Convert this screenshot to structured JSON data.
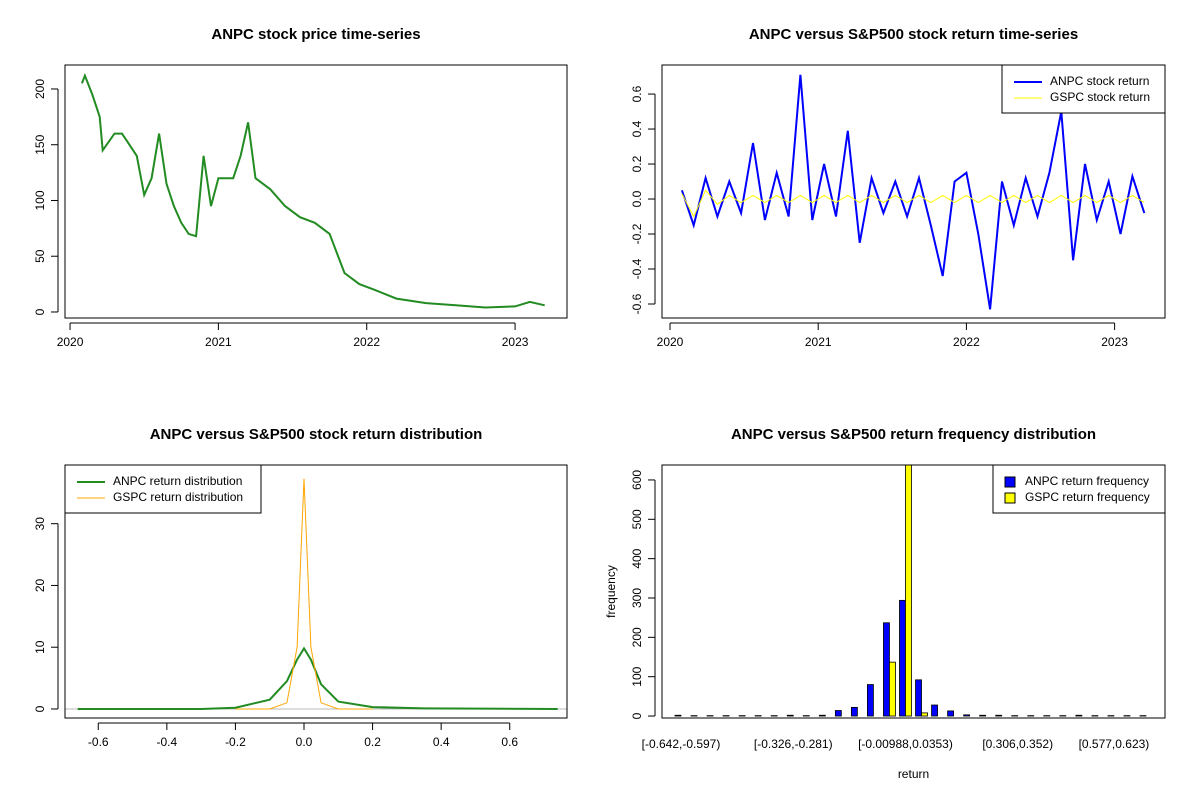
{
  "chart_data": [
    {
      "type": "line",
      "title": "ANPC stock price time-series",
      "color": "#228b22",
      "x": [
        2020.08,
        2020.1,
        2020.15,
        2020.2,
        2020.22,
        2020.3,
        2020.35,
        2020.4,
        2020.45,
        2020.5,
        2020.55,
        2020.6,
        2020.65,
        2020.7,
        2020.75,
        2020.8,
        2020.85,
        2020.9,
        2020.95,
        2021.0,
        2021.1,
        2021.15,
        2021.2,
        2021.25,
        2021.35,
        2021.45,
        2021.55,
        2021.65,
        2021.75,
        2021.85,
        2021.95,
        2022.05,
        2022.2,
        2022.4,
        2022.6,
        2022.8,
        2023.0,
        2023.1,
        2023.2
      ],
      "values": [
        205,
        212,
        195,
        175,
        145,
        160,
        160,
        150,
        140,
        105,
        120,
        160,
        115,
        95,
        80,
        70,
        68,
        140,
        95,
        120,
        120,
        140,
        170,
        120,
        110,
        95,
        85,
        80,
        70,
        35,
        25,
        20,
        12,
        8,
        6,
        4,
        5,
        9,
        6
      ],
      "xlim": [
        2019.966,
        2023.35
      ],
      "xticks": [
        2020,
        2021,
        2022,
        2023
      ],
      "ylim": [
        -5.4,
        221.5
      ],
      "yticks": [
        0,
        50,
        100,
        150,
        200
      ]
    },
    {
      "type": "line",
      "title": "ANPC versus S&P500 stock return time-series",
      "legend": "topright",
      "x": [
        2020.08,
        2020.16,
        2020.24,
        2020.32,
        2020.4,
        2020.48,
        2020.56,
        2020.64,
        2020.72,
        2020.8,
        2020.88,
        2020.96,
        2021.04,
        2021.12,
        2021.2,
        2021.28,
        2021.36,
        2021.44,
        2021.52,
        2021.6,
        2021.68,
        2021.76,
        2021.84,
        2021.92,
        2022.0,
        2022.08,
        2022.16,
        2022.24,
        2022.32,
        2022.4,
        2022.48,
        2022.56,
        2022.64,
        2022.72,
        2022.8,
        2022.88,
        2022.96,
        2023.04,
        2023.12,
        2023.2
      ],
      "series": [
        {
          "name": "ANPC stock return",
          "color": "#0000ff",
          "values": [
            0.05,
            -0.15,
            0.12,
            -0.1,
            0.1,
            -0.08,
            0.32,
            -0.12,
            0.15,
            -0.1,
            0.71,
            -0.12,
            0.2,
            -0.1,
            0.39,
            -0.25,
            0.12,
            -0.08,
            0.1,
            -0.1,
            0.12,
            -0.15,
            -0.44,
            0.1,
            0.15,
            -0.2,
            -0.63,
            0.1,
            -0.15,
            0.12,
            -0.1,
            0.15,
            0.5,
            -0.35,
            0.2,
            -0.12,
            0.1,
            -0.2,
            0.13,
            -0.08
          ]
        },
        {
          "name": "GSPC stock return",
          "color": "#ffff00",
          "values": [
            0.03,
            -0.1,
            0.05,
            -0.03,
            0.02,
            -0.02,
            0.02,
            -0.02,
            0.02,
            -0.02,
            0.02,
            -0.02,
            0.02,
            -0.02,
            0.02,
            -0.02,
            0.02,
            -0.02,
            0.02,
            -0.02,
            0.02,
            -0.02,
            0.02,
            -0.02,
            0.02,
            -0.02,
            0.02,
            -0.02,
            0.02,
            -0.02,
            0.02,
            -0.02,
            0.02,
            -0.02,
            0.02,
            -0.02,
            0.02,
            -0.02,
            0.02,
            -0.02
          ]
        }
      ],
      "xlim": [
        2019.946,
        2023.34
      ],
      "xticks": [
        2020,
        2021,
        2022,
        2023
      ],
      "ylim": [
        -0.68,
        0.766
      ],
      "yticks": [
        -0.6,
        -0.4,
        -0.2,
        {
          "value": 0,
          "label": "0.0"
        },
        0.2,
        0.4,
        0.6
      ]
    },
    {
      "type": "line",
      "title": "ANPC versus S&P500 stock return distribution",
      "legend": "topleft",
      "x": [
        -0.66,
        -0.3,
        -0.2,
        -0.1,
        -0.05,
        -0.02,
        0,
        0.02,
        0.05,
        0.1,
        0.2,
        0.35,
        0.74
      ],
      "series": [
        {
          "name": "ANPC return distribution",
          "color": "#228b22",
          "values": [
            0,
            0,
            0.2,
            1.5,
            4.5,
            8,
            9.8,
            8,
            4,
            1.2,
            0.3,
            0.1,
            0
          ]
        },
        {
          "name": "GSPC return distribution",
          "color": "#ffa500",
          "values": [
            null,
            null,
            0,
            0,
            1,
            10,
            37.3,
            10,
            1,
            0,
            0,
            null,
            null
          ]
        }
      ],
      "xlim": [
        -0.697,
        0.767
      ],
      "xticks": [
        -0.6,
        -0.4,
        -0.2,
        {
          "value": 0,
          "label": "0.0"
        },
        0.2,
        0.4,
        0.6
      ],
      "ylim": [
        -1.46,
        39.5
      ],
      "yticks": [
        0,
        10,
        20,
        30
      ]
    },
    {
      "type": "bar",
      "title": "ANPC versus S&P500 return frequency distribution",
      "legend": "topright",
      "xlabel": "return",
      "ylabel": "frequency",
      "categories": [
        "[-0.642,-0.597)",
        null,
        null,
        null,
        null,
        null,
        null,
        "[-0.326,-0.281)",
        null,
        null,
        null,
        null,
        null,
        null,
        "[-0.00988,0.0353)",
        null,
        null,
        null,
        null,
        null,
        null,
        "[0.306,0.352)",
        null,
        null,
        null,
        null,
        null,
        "[0.577,0.623)",
        null,
        null
      ],
      "series": [
        {
          "name": "ANPC return frequency",
          "color": "#0000ff",
          "values": [
            2,
            1,
            1,
            1,
            1,
            1,
            1,
            2,
            1,
            2,
            14,
            22,
            80,
            237,
            294,
            92,
            28,
            13,
            3,
            2,
            2,
            1,
            1,
            1,
            1,
            2,
            1,
            1,
            1,
            1
          ]
        },
        {
          "name": "GSPC return frequency",
          "color": "#ffff00",
          "values": [
            0,
            0,
            0,
            0,
            0,
            0,
            0,
            0,
            0,
            0,
            0,
            0,
            0,
            137,
            645,
            8,
            0,
            0,
            0,
            0,
            0,
            0,
            0,
            0,
            0,
            0,
            0,
            0,
            0,
            0
          ]
        }
      ],
      "ylim": [
        -5,
        638
      ],
      "yticks": [
        0,
        100,
        200,
        300,
        400,
        500,
        600
      ]
    }
  ]
}
